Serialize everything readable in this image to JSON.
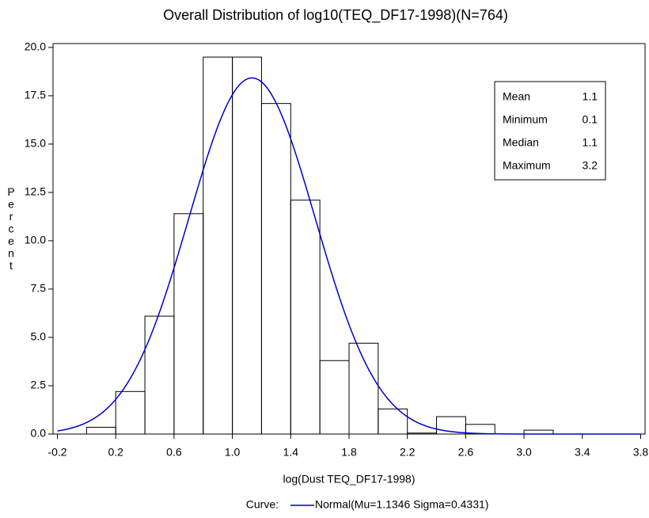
{
  "chart_data": {
    "type": "histogram",
    "title": "Overall Distribution of log10(TEQ_DF17-1998)(N=764)",
    "x_label": "log(Dust TEQ_DF17-1998)",
    "y_label": "Percent",
    "bins": [
      0.0,
      0.2,
      0.4,
      0.6,
      0.8,
      1.0,
      1.2,
      1.4,
      1.6,
      1.8,
      2.0,
      2.2,
      2.4,
      2.6,
      2.8,
      3.0,
      3.2
    ],
    "values": [
      0.35,
      2.2,
      6.1,
      11.4,
      19.5,
      19.5,
      17.1,
      12.1,
      3.8,
      4.7,
      1.3,
      0.05,
      0.9,
      0.5,
      0,
      0.2
    ],
    "color": "#000000",
    "xlim": [
      -0.23,
      3.83
    ],
    "ylim": [
      0,
      20.2
    ],
    "xticks": [
      -0.2,
      0.2,
      0.6,
      {
        "value": 1,
        "label": "1.0"
      },
      1.4,
      1.8,
      2.2,
      2.6,
      {
        "value": 3,
        "label": "3.0"
      },
      3.4,
      3.8
    ],
    "yticks": [
      {
        "value": 0,
        "label": "0.0"
      },
      {
        "value": 2.5,
        "label": "2.5"
      },
      {
        "value": 5,
        "label": "5.0"
      },
      {
        "value": 7.5,
        "label": "7.5"
      },
      {
        "value": 10,
        "label": "10.0"
      },
      {
        "value": 12.5,
        "label": "12.5"
      },
      {
        "value": 15,
        "label": "15.0"
      },
      {
        "value": 17.5,
        "label": "17.5"
      },
      {
        "value": 20,
        "label": "20.0"
      }
    ],
    "curve": {
      "legend_title": "Curve:",
      "label": "Normal(Mu=1.1346 Sigma=0.4331)",
      "mu": 1.1346,
      "sigma": 0.4331,
      "color": "#0000cc"
    },
    "stats": [
      {
        "label": "Mean",
        "value": 1.1
      },
      {
        "label": "Minimum",
        "value": 0.1
      },
      {
        "label": "Median",
        "value": 1.1
      },
      {
        "label": "Maximum",
        "value": 3.2
      }
    ]
  }
}
